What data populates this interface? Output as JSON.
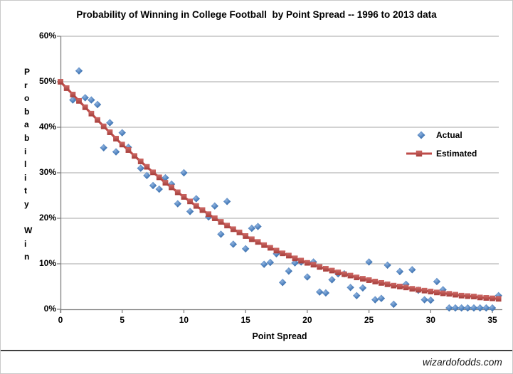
{
  "window": {
    "watermark": "wizardofodds.com"
  },
  "chart_data": {
    "type": "scatter",
    "title": "Probability of Winning in College Football  by Point Spread -- 1996 to 2013 data",
    "xlabel": "Point Spread",
    "ylabel": "Probability Win",
    "xlim": [
      0,
      35
    ],
    "ylim_percent": [
      0,
      60
    ],
    "x_ticks": [
      0,
      5,
      10,
      15,
      20,
      25,
      30,
      35
    ],
    "y_tick_labels": [
      "0%",
      "10%",
      "20%",
      "30%",
      "40%",
      "50%",
      "60%"
    ],
    "grid": "horizontal-only",
    "legend_position": "middle-right",
    "colors": {
      "gridline": "#a6a6a6",
      "axis": "#808080",
      "actual": "#4a7ebb",
      "actual_light": "#8fb2de",
      "actual_dark": "#3a659a",
      "estimated": "#be4b48",
      "estimated_light": "#cf6a66",
      "estimated_dark": "#a23e3b"
    },
    "series": [
      {
        "name": "Actual",
        "marker": "diamond",
        "points": [
          [
            1,
            46
          ],
          [
            1.5,
            52.4
          ],
          [
            2,
            46.5
          ],
          [
            2.5,
            46
          ],
          [
            3,
            45
          ],
          [
            3.5,
            35.5
          ],
          [
            4,
            41
          ],
          [
            4.5,
            34.6
          ],
          [
            5,
            38.8
          ],
          [
            5.5,
            35.6
          ],
          [
            6.5,
            31
          ],
          [
            7,
            29.4
          ],
          [
            7.5,
            27.2
          ],
          [
            8,
            26.4
          ],
          [
            8.5,
            28.9
          ],
          [
            9,
            27.5
          ],
          [
            9.5,
            23.2
          ],
          [
            10,
            30
          ],
          [
            10.5,
            21.5
          ],
          [
            11,
            24.3
          ],
          [
            12,
            20.3
          ],
          [
            12.5,
            22.7
          ],
          [
            13,
            16.5
          ],
          [
            13.5,
            23.7
          ],
          [
            14,
            14.3
          ],
          [
            15,
            13.3
          ],
          [
            15.5,
            17.8
          ],
          [
            16,
            18.2
          ],
          [
            16.5,
            9.9
          ],
          [
            17,
            10.3
          ],
          [
            17.5,
            12.2
          ],
          [
            18,
            5.9
          ],
          [
            18.5,
            8.4
          ],
          [
            19,
            10.2
          ],
          [
            19.5,
            10.4
          ],
          [
            20,
            7.1
          ],
          [
            20.5,
            10.4
          ],
          [
            21,
            3.8
          ],
          [
            21.5,
            3.6
          ],
          [
            22,
            6.5
          ],
          [
            22.5,
            7.8
          ],
          [
            23,
            7.8
          ],
          [
            23.5,
            4.8
          ],
          [
            24,
            3
          ],
          [
            24.5,
            4.7
          ],
          [
            25,
            10.4
          ],
          [
            25.5,
            2.1
          ],
          [
            26,
            2.4
          ],
          [
            26.5,
            9.7
          ],
          [
            27,
            1.1
          ],
          [
            27.5,
            8.3
          ],
          [
            28,
            5.5
          ],
          [
            28.5,
            8.7
          ],
          [
            29,
            4.2
          ],
          [
            29.5,
            2.1
          ],
          [
            30,
            2
          ],
          [
            30.5,
            6.1
          ],
          [
            31,
            4.3
          ],
          [
            31.5,
            0.3
          ],
          [
            32,
            0.3
          ],
          [
            32.5,
            0.3
          ],
          [
            33,
            0.3
          ],
          [
            33.5,
            0.3
          ],
          [
            34,
            0.3
          ],
          [
            34.5,
            0.3
          ],
          [
            35,
            0.3
          ],
          [
            35.5,
            3
          ]
        ]
      },
      {
        "name": "Estimated",
        "marker": "square-line",
        "points": [
          [
            0,
            50
          ],
          [
            0.5,
            48.6
          ],
          [
            1,
            47.2
          ],
          [
            1.5,
            45.8
          ],
          [
            2,
            44.4
          ],
          [
            2.5,
            43
          ],
          [
            3,
            41.6
          ],
          [
            3.5,
            40.2
          ],
          [
            4,
            38.9
          ],
          [
            4.5,
            37.5
          ],
          [
            5,
            36.2
          ],
          [
            5.5,
            35
          ],
          [
            6,
            33.7
          ],
          [
            6.5,
            32.5
          ],
          [
            7,
            31.3
          ],
          [
            7.5,
            30.1
          ],
          [
            8,
            29
          ],
          [
            8.5,
            27.8
          ],
          [
            9,
            26.8
          ],
          [
            9.5,
            25.7
          ],
          [
            10,
            24.7
          ],
          [
            10.5,
            23.7
          ],
          [
            11,
            22.7
          ],
          [
            11.5,
            21.8
          ],
          [
            12,
            20.9
          ],
          [
            12.5,
            20
          ],
          [
            13,
            19.2
          ],
          [
            13.5,
            18.4
          ],
          [
            14,
            17.6
          ],
          [
            14.5,
            16.9
          ],
          [
            15,
            16.1
          ],
          [
            15.5,
            15.4
          ],
          [
            16,
            14.8
          ],
          [
            16.5,
            14.1
          ],
          [
            17,
            13.5
          ],
          [
            17.5,
            12.9
          ],
          [
            18,
            12.3
          ],
          [
            18.5,
            11.8
          ],
          [
            19,
            11.2
          ],
          [
            19.5,
            10.7
          ],
          [
            20,
            10.2
          ],
          [
            20.5,
            9.8
          ],
          [
            21,
            9.3
          ],
          [
            21.5,
            8.9
          ],
          [
            22,
            8.5
          ],
          [
            22.5,
            8.1
          ],
          [
            23,
            7.7
          ],
          [
            23.5,
            7.4
          ],
          [
            24,
            7
          ],
          [
            24.5,
            6.7
          ],
          [
            25,
            6.4
          ],
          [
            25.5,
            6.1
          ],
          [
            26,
            5.8
          ],
          [
            26.5,
            5.5
          ],
          [
            27,
            5.2
          ],
          [
            27.5,
            5
          ],
          [
            28,
            4.8
          ],
          [
            28.5,
            4.5
          ],
          [
            29,
            4.3
          ],
          [
            29.5,
            4.1
          ],
          [
            30,
            3.9
          ],
          [
            30.5,
            3.7
          ],
          [
            31,
            3.5
          ],
          [
            31.5,
            3.4
          ],
          [
            32,
            3.2
          ],
          [
            32.5,
            3
          ],
          [
            33,
            2.9
          ],
          [
            33.5,
            2.8
          ],
          [
            34,
            2.6
          ],
          [
            34.5,
            2.5
          ],
          [
            35,
            2.4
          ],
          [
            35.5,
            2.3
          ]
        ]
      }
    ]
  }
}
